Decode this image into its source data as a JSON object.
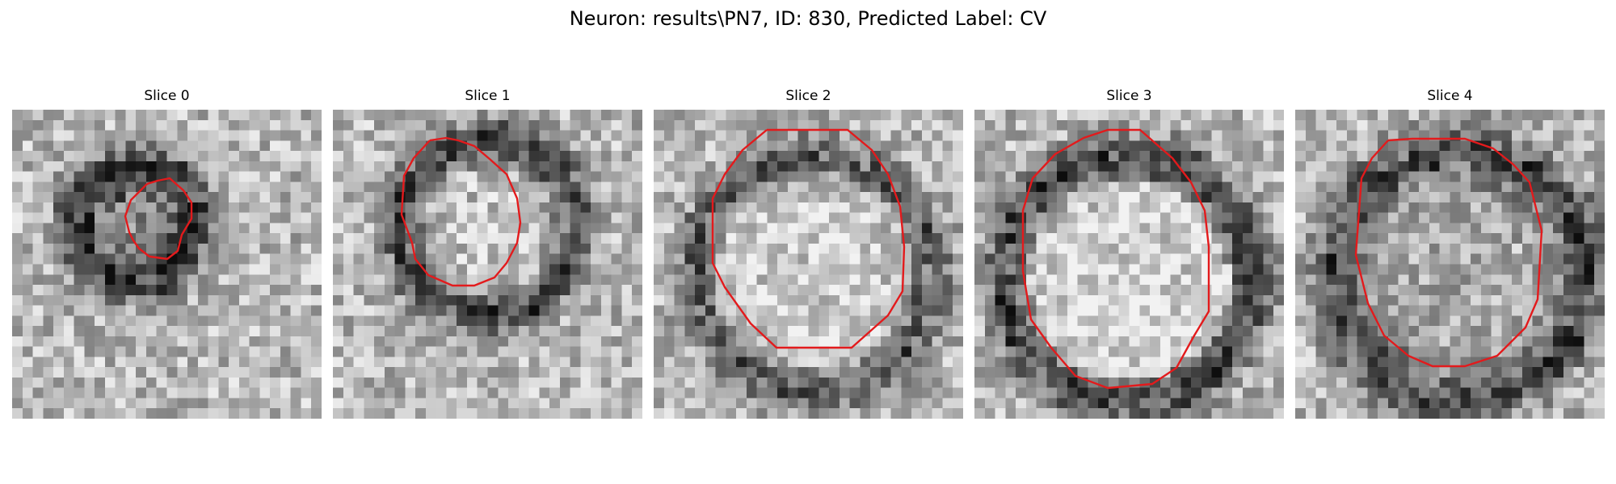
{
  "figure": {
    "title": "Neuron: results\\PN7, ID: 830, Predicted Label: CV"
  },
  "panels": [
    {
      "title": "Slice 0"
    },
    {
      "title": "Slice 1"
    },
    {
      "title": "Slice 2"
    },
    {
      "title": "Slice 3"
    },
    {
      "title": "Slice 4"
    }
  ],
  "colors": {
    "contour": "#e31a1c",
    "background": "#ffffff"
  }
}
